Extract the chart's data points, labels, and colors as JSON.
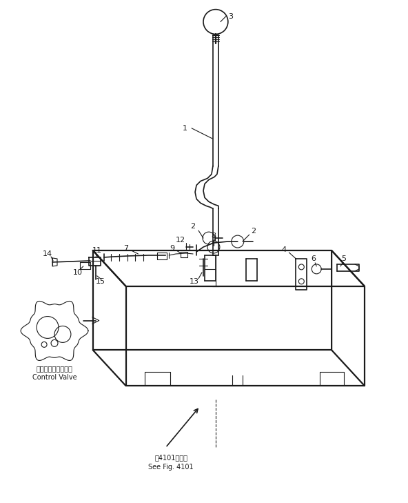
{
  "bg_color": "#ffffff",
  "line_color": "#1a1a1a",
  "fig_width": 5.92,
  "fig_height": 7.29,
  "dpi": 100,
  "control_valve_label_jp": "コントロールバルフ",
  "control_valve_label_en": "Control Valve",
  "see_fig_jp": "図4101図参照",
  "see_fig_en": "See Fig. 4101"
}
